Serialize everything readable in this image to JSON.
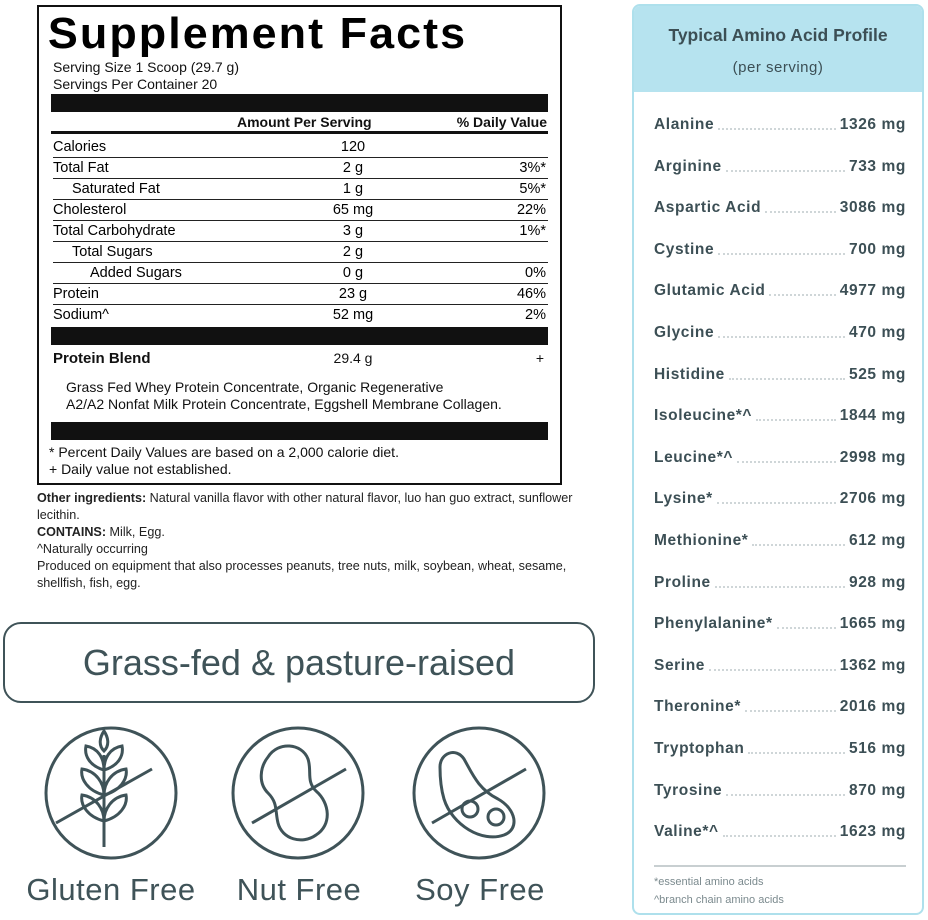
{
  "supplement_facts": {
    "title": "Supplement Facts",
    "serving_size": "Serving Size 1 Scoop (29.7 g)",
    "servings_per_container": "Servings Per Container 20",
    "header": {
      "amount": "Amount Per Serving",
      "daily_value": "% Daily Value"
    },
    "rows": [
      [
        "Calories",
        "120",
        ""
      ],
      [
        "Total Fat",
        "2 g",
        "3%*"
      ],
      [
        "Saturated Fat",
        "1 g",
        "5%*"
      ],
      [
        "Cholesterol",
        "65 mg",
        "22%"
      ],
      [
        "Total Carbohydrate",
        "3 g",
        "1%*"
      ],
      [
        "Total Sugars",
        "2 g",
        ""
      ],
      [
        "Added Sugars",
        "0 g",
        "0%"
      ],
      [
        "Protein",
        "23 g",
        "46%"
      ],
      [
        "Sodium^",
        "52 mg",
        "2%"
      ]
    ],
    "blend": {
      "name": "Protein Blend",
      "amount": "29.4 g",
      "daily_value": "+",
      "description": [
        "Grass Fed Whey Protein Concentrate, Organic Regenerative",
        "A2/A2 Nonfat Milk Protein Concentrate, Eggshell Membrane Collagen."
      ]
    },
    "footnotes": [
      "* Percent Daily Values are based on a 2,000 calorie diet.",
      "+ Daily value not established."
    ]
  },
  "notes": {
    "other_ingredients": {
      "label": "Other ingredients:",
      "text": "Natural vanilla flavor with other natural flavor, luo han guo extract, sunflower lecithin."
    },
    "contains": {
      "label": "CONTAINS:",
      "text": "Milk, Egg."
    },
    "naturally_occurring": "^Naturally occurring",
    "facility": "Produced on equipment that also processes peanuts, tree nuts, milk, soybean, wheat, sesame, shellfish, fish, egg."
  },
  "badge": "Grass-fed & pasture-raised",
  "icons": [
    {
      "label": "Gluten Free"
    },
    {
      "label": "Nut Free"
    },
    {
      "label": "Soy Free"
    }
  ],
  "amino": {
    "title": "Typical Amino Acid Profile",
    "subtitle": "(per serving)",
    "rows": [
      [
        "Alanine",
        "1326 mg"
      ],
      [
        "Arginine",
        "733 mg"
      ],
      [
        "Aspartic Acid",
        "3086 mg"
      ],
      [
        "Cystine",
        "700 mg"
      ],
      [
        "Glutamic Acid",
        "4977 mg"
      ],
      [
        "Glycine",
        "470 mg"
      ],
      [
        "Histidine",
        "525 mg"
      ],
      [
        "Isoleucine*^",
        "1844 mg"
      ],
      [
        "Leucine*^",
        "2998 mg"
      ],
      [
        "Lysine*",
        "2706 mg"
      ],
      [
        "Methionine*",
        "612 mg"
      ],
      [
        "Proline",
        "928 mg"
      ],
      [
        "Phenylalanine*",
        "1665 mg"
      ],
      [
        "Serine",
        "1362 mg"
      ],
      [
        "Theronine*",
        "2016 mg"
      ],
      [
        "Tryptophan",
        "516 mg"
      ],
      [
        "Tyrosine",
        "870 mg"
      ],
      [
        "Valine*^",
        "1623 mg"
      ]
    ],
    "footnotes": [
      "*essential amino acids",
      "^branch chain amino acids"
    ]
  }
}
